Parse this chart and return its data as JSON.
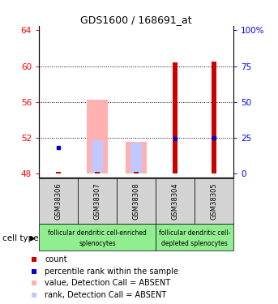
{
  "title": "GDS1600 / 168691_at",
  "samples": [
    "GSM38306",
    "GSM38307",
    "GSM38308",
    "GSM38304",
    "GSM38305"
  ],
  "ylim_left": [
    47.5,
    64.5
  ],
  "yticks_left": [
    48,
    52,
    56,
    60,
    64
  ],
  "yticks_right": [
    0,
    25,
    50,
    75,
    100
  ],
  "left_tick_labels": [
    "48",
    "52",
    "56",
    "60",
    "64"
  ],
  "right_tick_labels": [
    "0",
    "25",
    "50",
    "75",
    "100%"
  ],
  "count_values": [
    48.2,
    48.15,
    48.15,
    60.4,
    60.5
  ],
  "count_bottoms": [
    48.0,
    48.0,
    48.0,
    48.0,
    48.0
  ],
  "rank_shown": [
    true,
    false,
    false,
    true,
    true
  ],
  "rank_values": [
    50.9,
    52.0,
    51.5,
    51.9,
    52.0
  ],
  "absent_value_tops": [
    null,
    56.2,
    51.5,
    null,
    null
  ],
  "absent_value_bottoms": [
    null,
    48.0,
    48.0,
    null,
    null
  ],
  "absent_rank_tops": [
    null,
    51.7,
    51.4,
    null,
    null
  ],
  "absent_rank_bottoms": [
    null,
    48.0,
    48.0,
    null,
    null
  ],
  "count_color": "#cc0000",
  "rank_color": "#0000cc",
  "absent_value_color": "#ffb0b0",
  "absent_rank_color": "#c0c8ff",
  "group1_label_line1": "follicular dendritic cell-enriched",
  "group1_label_line2": "splenocytes",
  "group2_label_line1": "follicular dendritic cell-",
  "group2_label_line2": "depleted splenocytes",
  "group_color": "#90ee90",
  "sample_bg_color": "#d3d3d3",
  "cell_type_label": "cell type",
  "legend_items": [
    {
      "label": "count",
      "color": "#cc0000"
    },
    {
      "label": "percentile rank within the sample",
      "color": "#0000cc"
    },
    {
      "label": "value, Detection Call = ABSENT",
      "color": "#ffb0b0"
    },
    {
      "label": "rank, Detection Call = ABSENT",
      "color": "#c0c8ff"
    }
  ]
}
